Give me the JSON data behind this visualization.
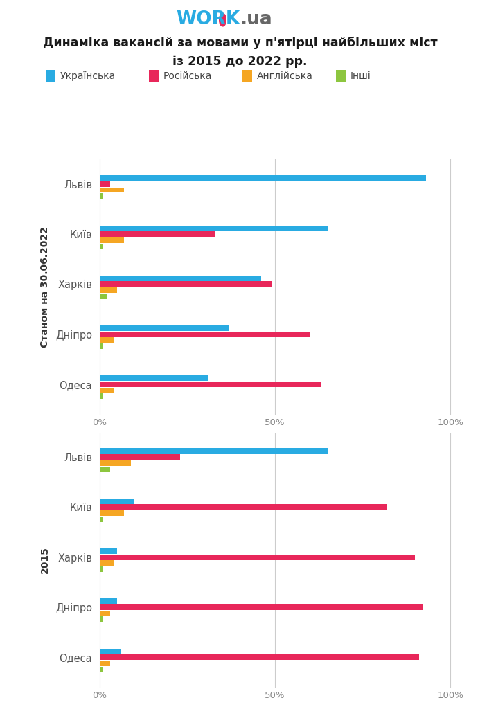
{
  "title_line1": "Динаміка вакансій за мовами у п'ятірці найбільших міст",
  "title_line2": "із 2015 до 2022 рр.",
  "cities": [
    "Львів",
    "Київ",
    "Харків",
    "Дніпро",
    "Одеса"
  ],
  "languages": [
    "Українська",
    "Російська",
    "Англійська",
    "Інші"
  ],
  "colors": [
    "#29ABE2",
    "#E8275A",
    "#F5A623",
    "#8DC63F"
  ],
  "section1_label": "Станом на 30.06.2022",
  "section2_label": "2015",
  "data_2022": [
    [
      93,
      3,
      7,
      1
    ],
    [
      65,
      33,
      7,
      1
    ],
    [
      46,
      49,
      5,
      2
    ],
    [
      37,
      60,
      4,
      1
    ],
    [
      31,
      63,
      4,
      1
    ]
  ],
  "data_2015": [
    [
      65,
      23,
      9,
      3
    ],
    [
      10,
      82,
      7,
      1
    ],
    [
      5,
      90,
      4,
      1
    ],
    [
      5,
      92,
      3,
      1
    ],
    [
      6,
      91,
      3,
      1
    ]
  ],
  "background_color": "#FFFFFF",
  "grid_color": "#CCCCCC",
  "axis_color": "#888888",
  "title_color": "#1A1A1A",
  "city_label_color": "#555555",
  "section_label_color": "#333333",
  "logo_cyan": "#29ABE2",
  "logo_gray": "#666666",
  "logo_red": "#E8275A"
}
